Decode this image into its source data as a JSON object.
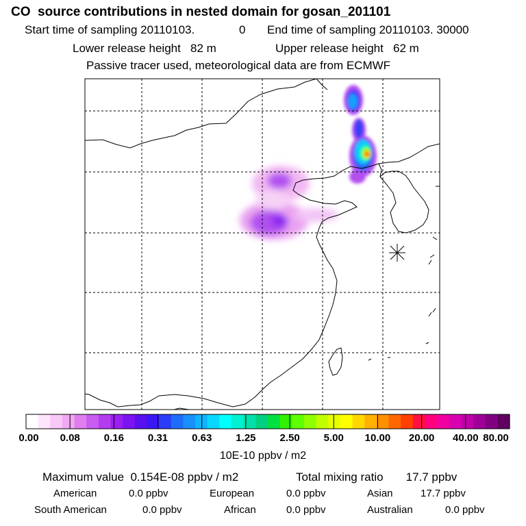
{
  "header": {
    "title": "CO  source contributions in nested domain for gosan_201101",
    "start_label": "Start time of sampling 20110103.",
    "start_hour": "0",
    "end_label": "End time of sampling 20110103. 30000",
    "lower_release": "Lower release height   82 m",
    "upper_release": "Upper release height   62 m",
    "tracer_note": "Passive tracer used, meteorological data are from ECMWF"
  },
  "colorbar": {
    "ticks": [
      "0.00",
      "0.08",
      "0.16",
      "0.31",
      "0.63",
      "1.25",
      "2.50",
      "5.00",
      "10.00",
      "20.00",
      "40.00",
      "80.00"
    ],
    "unit": "10E-10 ppbv / m2",
    "colors": [
      "#ffffff",
      "#fde6fd",
      "#f8c8f8",
      "#f2a8f2",
      "#e07ef0",
      "#c85cf0",
      "#b43cf0",
      "#9c1ef0",
      "#7a14f0",
      "#5a10f0",
      "#3a18f4",
      "#2a3cf8",
      "#1e6cfa",
      "#1890fc",
      "#10b4fe",
      "#08d8ff",
      "#00ffff",
      "#00f0d0",
      "#00e0a8",
      "#00d080",
      "#00e040",
      "#30f000",
      "#60ff00",
      "#90ff00",
      "#c0ff00",
      "#e8ff00",
      "#ffff00",
      "#ffd800",
      "#ffb000",
      "#ff9000",
      "#ff6800",
      "#ff4000",
      "#ff1040",
      "#ff0080",
      "#f000a0",
      "#d800b0",
      "#c000a8",
      "#a00098",
      "#800080",
      "#600060"
    ]
  },
  "summary": {
    "max_value": "Maximum value  0.154E-08 ppbv / m2",
    "total_mixing": "Total mixing ratio       17.7 ppbv"
  },
  "regions": {
    "american": {
      "name": "American",
      "value": "0.0 ppbv"
    },
    "european": {
      "name": "European",
      "value": "0.0 ppbv"
    },
    "asian": {
      "name": "Asian",
      "value": "17.7 ppbv"
    },
    "south_american": {
      "name": "South American",
      "value": "0.0 ppbv"
    },
    "african": {
      "name": "African",
      "value": "0.0 ppbv"
    },
    "australian": {
      "name": "Australian",
      "value": "0.0 ppbv"
    }
  }
}
